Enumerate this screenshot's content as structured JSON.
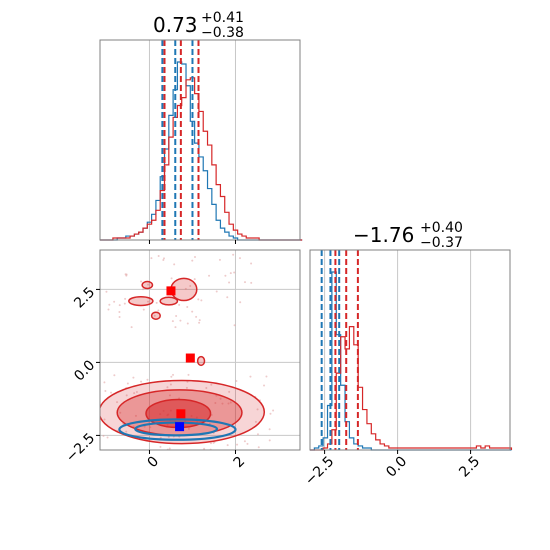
{
  "chart_data": {
    "type": "corner",
    "colors": {
      "red": "#d62728",
      "blue": "#1f77b4",
      "marker_red": "#ff0000",
      "marker_blue": "#0000ff",
      "grid": "#c8c8c8"
    },
    "params": [
      {
        "title_value": "0.73",
        "title_sup": "+0.41",
        "title_sub": "−0.38",
        "range": [
          -1.15,
          3.5
        ],
        "ticks": [
          0,
          2
        ],
        "tick_labels": [
          "0",
          "2"
        ]
      },
      {
        "title_value": "−1.76",
        "title_sup": "+0.40",
        "title_sub": "−0.37",
        "range": [
          -3.0,
          3.85
        ],
        "ticks": [
          -2.5,
          0.0,
          2.5
        ],
        "tick_labels": [
          "−2.5",
          "0.0",
          "2.5"
        ]
      }
    ],
    "hist1": {
      "bin_edges_start": -1.15,
      "bin_width": 0.1,
      "red": [
        0,
        0,
        0,
        1,
        1,
        1,
        1,
        2,
        3,
        4,
        6,
        8,
        10,
        15,
        25,
        38,
        52,
        62,
        68,
        72,
        81,
        82,
        74,
        65,
        55,
        48,
        38,
        28,
        22,
        14,
        8,
        5,
        3,
        2,
        1,
        1,
        1,
        0,
        0,
        0,
        0,
        0,
        0,
        0,
        0,
        0,
        0
      ],
      "blue": [
        0,
        0,
        0,
        0,
        1,
        1,
        2,
        2,
        3,
        4,
        6,
        9,
        13,
        20,
        32,
        46,
        63,
        76,
        90,
        89,
        78,
        60,
        49,
        42,
        35,
        26,
        18,
        10,
        6,
        4,
        2,
        1,
        0,
        0,
        0,
        0,
        0,
        0,
        0,
        0,
        0,
        0,
        0,
        0,
        0,
        0,
        0
      ],
      "red_quantiles": [
        0.35,
        0.73,
        1.14
      ],
      "blue_quantiles": [
        0.3,
        0.6,
        1.0
      ]
    },
    "hist2": {
      "bin_edges_start": -3.0,
      "bin_width": 0.15,
      "red": [
        0,
        0,
        0,
        1,
        3,
        10,
        38,
        56,
        50,
        61,
        52,
        31,
        20,
        13,
        8,
        5,
        3,
        2,
        1,
        1,
        1,
        1,
        1,
        1,
        1,
        1,
        1,
        1,
        1,
        1,
        1,
        1,
        1,
        1,
        1,
        1,
        1,
        1,
        2,
        1,
        2,
        1,
        1,
        1,
        1,
        1
      ],
      "blue": [
        0,
        1,
        2,
        6,
        22,
        88,
        57,
        32,
        14,
        6,
        3,
        2,
        1,
        1,
        0,
        0,
        0,
        0,
        0,
        0,
        0,
        0,
        0,
        0,
        0,
        0,
        0,
        0,
        0,
        0,
        0,
        0,
        0,
        0,
        0,
        0,
        0,
        0,
        0,
        0,
        0,
        0,
        0,
        0,
        0,
        0
      ],
      "red_quantiles": [
        -2.13,
        -1.76,
        -1.36
      ],
      "blue_quantiles": [
        -2.6,
        -2.3,
        -2.0
      ]
    },
    "scatter": {
      "red_contours": [
        {
          "cx": 0.75,
          "cy": -1.7,
          "rx": 1.92,
          "ry": 1.08,
          "alpha": 0.35
        },
        {
          "cx": 0.7,
          "cy": -1.72,
          "rx": 1.45,
          "ry": 0.78,
          "alpha": 0.65
        },
        {
          "cx": 0.67,
          "cy": -1.75,
          "rx": 0.75,
          "ry": 0.48,
          "alpha": 1.0
        }
      ],
      "red_islands": [
        {
          "cx": 0.8,
          "cy": 2.5,
          "rx": 0.3,
          "ry": 0.38
        },
        {
          "cx": -0.2,
          "cy": 2.1,
          "rx": 0.28,
          "ry": 0.15
        },
        {
          "cx": -0.05,
          "cy": 2.65,
          "rx": 0.12,
          "ry": 0.12
        },
        {
          "cx": 0.15,
          "cy": 1.6,
          "rx": 0.1,
          "ry": 0.12
        },
        {
          "cx": 1.2,
          "cy": 0.05,
          "rx": 0.08,
          "ry": 0.15
        },
        {
          "cx": 0.45,
          "cy": 2.1,
          "rx": 0.2,
          "ry": 0.13
        }
      ],
      "blue_contours": [
        {
          "cx": 0.65,
          "cy": -2.3,
          "rx": 1.35,
          "ry": 0.35
        },
        {
          "cx": 0.62,
          "cy": -2.28,
          "rx": 0.95,
          "ry": 0.22
        }
      ],
      "red_squares": [
        {
          "x": 0.5,
          "y": 2.45
        },
        {
          "x": 0.95,
          "y": 0.15
        },
        {
          "x": 0.73,
          "y": -1.76
        }
      ],
      "blue_square": {
        "x": 0.7,
        "y": -2.2
      }
    }
  }
}
